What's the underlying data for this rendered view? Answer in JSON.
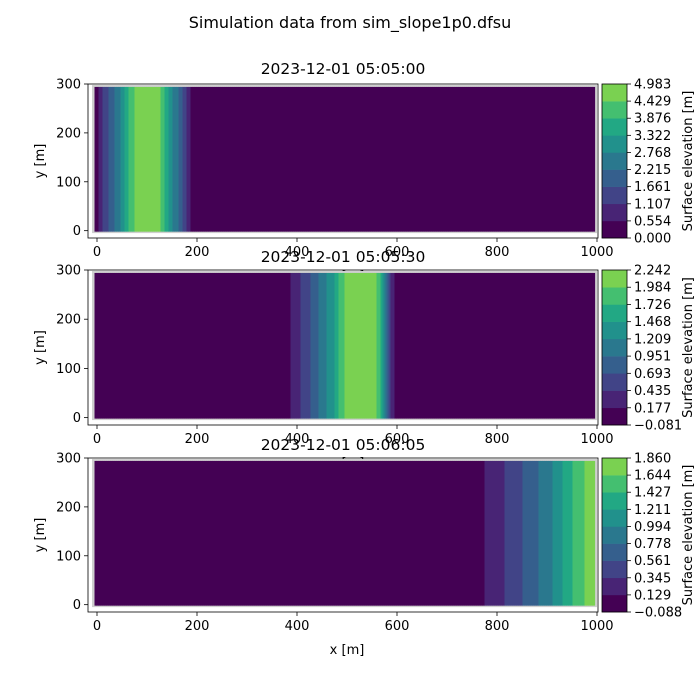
{
  "figure_title": "Simulation data from sim_slope1p0.dfsu",
  "colormap": [
    "#440154",
    "#482475",
    "#414487",
    "#355f8d",
    "#2a788e",
    "#21918c",
    "#22a884",
    "#44bf70",
    "#7ad151",
    "#bddf26",
    "#fde725"
  ],
  "chart_data": [
    {
      "type": "heatmap",
      "title": "2023-12-01 05:05:00",
      "xlabel": "x [m]",
      "ylabel": "y [m]",
      "colorbar_label": "Surface elevation [m]",
      "xlim": [
        0,
        1000
      ],
      "ylim": [
        0,
        300
      ],
      "xticks": [
        "0",
        "200",
        "400",
        "600",
        "800",
        "1000"
      ],
      "yticks": [
        "0",
        "100",
        "200",
        "300"
      ],
      "colorbar_ticks": [
        "0.000",
        "0.554",
        "1.107",
        "1.661",
        "2.215",
        "2.768",
        "3.322",
        "3.876",
        "4.429",
        "4.983"
      ],
      "color_levels": [
        0.0,
        0.554,
        1.107,
        1.661,
        2.215,
        2.768,
        3.322,
        3.876,
        4.429,
        4.983
      ],
      "profile_x": [
        0,
        15,
        30,
        45,
        55,
        62,
        70,
        80,
        90,
        100,
        110,
        120,
        130,
        138,
        145,
        155,
        165,
        175,
        185,
        190,
        1000
      ],
      "profile_value": [
        0.4,
        1.4,
        2.0,
        2.6,
        3.2,
        3.8,
        4.2,
        4.7,
        4.95,
        4.98,
        4.95,
        4.7,
        4.2,
        3.8,
        3.2,
        2.6,
        2.0,
        1.4,
        0.6,
        0.05,
        0.05
      ]
    },
    {
      "type": "heatmap",
      "title": "2023-12-01 05:05:30",
      "xlabel": "x [m]",
      "ylabel": "y [m]",
      "colorbar_label": "Surface elevation [m]",
      "xlim": [
        0,
        1000
      ],
      "ylim": [
        0,
        300
      ],
      "xticks": [
        "0",
        "200",
        "400",
        "600",
        "800",
        "1000"
      ],
      "yticks": [
        "0",
        "100",
        "200",
        "300"
      ],
      "colorbar_ticks": [
        "−0.081",
        "0.177",
        "0.435",
        "0.693",
        "0.951",
        "1.209",
        "1.468",
        "1.726",
        "1.984",
        "2.242"
      ],
      "color_levels": [
        -0.081,
        0.177,
        0.435,
        0.693,
        0.951,
        1.209,
        1.468,
        1.726,
        1.984,
        2.242
      ],
      "profile_x": [
        0,
        360,
        380,
        400,
        420,
        440,
        460,
        480,
        495,
        505,
        520,
        540,
        560,
        570,
        580,
        590,
        600,
        1000
      ],
      "profile_value": [
        -0.06,
        -0.06,
        0.1,
        0.3,
        0.6,
        0.9,
        1.2,
        1.6,
        2.0,
        2.2,
        2.24,
        2.2,
        2.0,
        1.6,
        0.9,
        0.3,
        0.05,
        0.05
      ]
    },
    {
      "type": "heatmap",
      "title": "2023-12-01 05:06:05",
      "xlabel": "x [m]",
      "ylabel": "y [m]",
      "colorbar_label": "Surface elevation [m]",
      "xlim": [
        0,
        1000
      ],
      "ylim": [
        0,
        300
      ],
      "xticks": [
        "0",
        "200",
        "400",
        "600",
        "800",
        "1000"
      ],
      "yticks": [
        "0",
        "100",
        "200",
        "300"
      ],
      "colorbar_ticks": [
        "−0.088",
        "0.129",
        "0.345",
        "0.561",
        "0.778",
        "0.994",
        "1.211",
        "1.427",
        "1.644",
        "1.860"
      ],
      "color_levels": [
        -0.088,
        0.129,
        0.345,
        0.561,
        0.778,
        0.994,
        1.211,
        1.427,
        1.644,
        1.86
      ],
      "profile_x": [
        0,
        700,
        740,
        780,
        810,
        840,
        870,
        900,
        920,
        940,
        960,
        975,
        990,
        1000
      ],
      "profile_value": [
        -0.07,
        -0.07,
        0.0,
        0.15,
        0.3,
        0.5,
        0.7,
        0.9,
        1.1,
        1.3,
        1.5,
        1.65,
        1.8,
        1.86
      ]
    }
  ]
}
